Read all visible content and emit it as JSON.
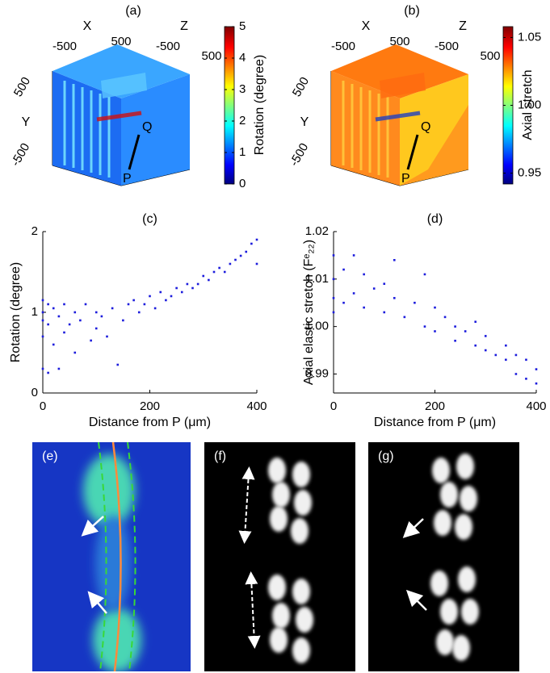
{
  "chart_data": [
    {
      "type": "volume",
      "label": "(a)",
      "xlabel": "X",
      "ylabel": "Y",
      "zlabel": "Z",
      "xticks": [
        -500,
        500
      ],
      "yticks": [
        500,
        -500
      ],
      "zticks": [
        -500,
        500
      ],
      "annotations": [
        "Q",
        "P"
      ],
      "colorbar_label": "Rotation (degree)",
      "clim": [
        0,
        5
      ],
      "cticks": [
        0,
        1,
        2,
        3,
        4,
        5
      ]
    },
    {
      "type": "volume",
      "label": "(b)",
      "xlabel": "X",
      "ylabel": "Y",
      "zlabel": "Z",
      "xticks": [
        -500,
        500
      ],
      "yticks": [
        500,
        -500
      ],
      "zticks": [
        -500,
        500
      ],
      "annotations": [
        "Q",
        "P"
      ],
      "colorbar_label": "Axial stretch",
      "clim": [
        0.942,
        1.058
      ],
      "cticks": [
        0.95,
        {
          "value": 1,
          "label": "1.00"
        },
        1.05
      ]
    },
    {
      "type": "scatter",
      "label": "(c)",
      "xlabel": "Distance from P (μm)",
      "ylabel": "Rotation (degree)",
      "color": "#1c1cdc",
      "xlim": [
        0,
        400
      ],
      "ylim": [
        0,
        2
      ],
      "xticks": [
        0,
        200,
        400
      ],
      "yticks": [
        0,
        1,
        2
      ],
      "x": [
        0,
        0,
        0,
        0,
        0,
        10,
        10,
        10,
        20,
        20,
        30,
        30,
        40,
        40,
        50,
        60,
        60,
        70,
        80,
        90,
        100,
        100,
        110,
        120,
        130,
        140,
        150,
        160,
        170,
        180,
        190,
        200,
        210,
        220,
        230,
        240,
        250,
        260,
        270,
        280,
        290,
        300,
        310,
        320,
        330,
        340,
        350,
        360,
        370,
        380,
        390,
        400,
        400
      ],
      "values": [
        1.15,
        1.0,
        0.9,
        0.7,
        0.3,
        1.1,
        0.85,
        0.25,
        1.05,
        0.6,
        0.95,
        0.3,
        1.1,
        0.75,
        0.85,
        1.0,
        0.5,
        0.9,
        1.1,
        0.65,
        1.0,
        0.8,
        0.95,
        0.7,
        1.05,
        0.35,
        0.9,
        1.1,
        1.15,
        1.0,
        1.1,
        1.2,
        1.05,
        1.25,
        1.15,
        1.2,
        1.3,
        1.25,
        1.35,
        1.3,
        1.35,
        1.45,
        1.4,
        1.5,
        1.55,
        1.5,
        1.6,
        1.65,
        1.7,
        1.75,
        1.85,
        1.9,
        1.6
      ]
    },
    {
      "type": "scatter",
      "label": "(d)",
      "xlabel": "Distance from P (μm)",
      "ylabel": "Axial elastic stretch (Fᵉ₂₂)",
      "color": "#1c1cdc",
      "xlim": [
        0,
        400
      ],
      "ylim": [
        0.986,
        1.02
      ],
      "xticks": [
        0,
        200,
        400
      ],
      "yticks": [
        0.99,
        {
          "value": 1,
          "label": "1.00"
        },
        1.01,
        1.02
      ],
      "x": [
        0,
        0,
        0,
        0,
        20,
        20,
        40,
        40,
        60,
        60,
        80,
        100,
        100,
        120,
        120,
        140,
        160,
        180,
        180,
        200,
        200,
        220,
        240,
        240,
        260,
        280,
        280,
        300,
        300,
        320,
        340,
        340,
        360,
        360,
        380,
        380,
        400,
        400
      ],
      "values": [
        1.015,
        1.01,
        1.006,
        1.003,
        1.012,
        1.005,
        1.015,
        1.007,
        1.011,
        1.004,
        1.008,
        1.009,
        1.003,
        1.014,
        1.006,
        1.002,
        1.005,
        1.011,
        1.0,
        1.004,
        0.999,
        1.002,
        1.0,
        0.997,
        0.999,
        0.996,
        1.001,
        0.995,
        0.998,
        0.994,
        0.993,
        0.996,
        0.99,
        0.994,
        0.989,
        0.993,
        0.988,
        0.991
      ]
    },
    {
      "type": "image",
      "label": "(e)"
    },
    {
      "type": "image",
      "label": "(f)"
    },
    {
      "type": "image",
      "label": "(g)"
    }
  ]
}
